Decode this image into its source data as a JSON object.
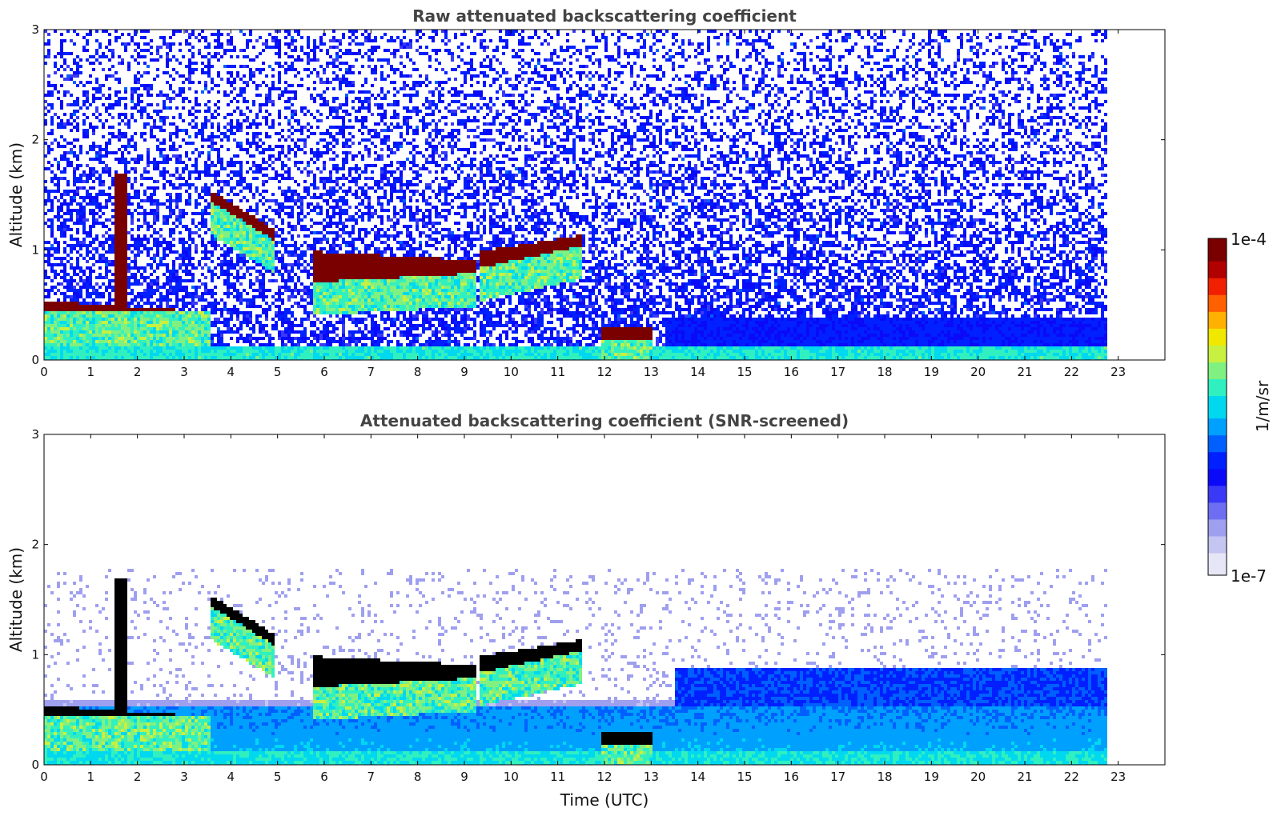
{
  "chart_data": [
    {
      "type": "heatmap",
      "title": "Raw attenuated backscattering coefficient",
      "xlabel": "",
      "ylabel": "Altitude (km)",
      "xlim": [
        0,
        24
      ],
      "ylim": [
        0,
        3
      ],
      "x_ticks": [
        "0",
        "1",
        "2",
        "3",
        "4",
        "5",
        "6",
        "7",
        "8",
        "9",
        "10",
        "11",
        "12",
        "13",
        "14",
        "15",
        "16",
        "17",
        "18",
        "19",
        "20",
        "21",
        "22",
        "23"
      ],
      "y_ticks": [
        "0",
        "1",
        "2",
        "3"
      ],
      "data_extent_hours": [
        0,
        22.7
      ],
      "colorscale": "jet",
      "layers": [
        {
          "x": [
            0,
            3.55
          ],
          "base_km": [
            0.45,
            0.45
          ],
          "note": "cloud layer",
          "top_km": [
            0.55,
            0.45
          ]
        },
        {
          "x": [
            1.5,
            1.75
          ],
          "base_km": [
            0.45
          ],
          "top_km": [
            1.7
          ]
        },
        {
          "x": [
            3.55,
            4.9
          ],
          "base_km": [
            1.45,
            1.1
          ],
          "top_km": [
            1.55,
            1.2
          ]
        },
        {
          "x": [
            5.7,
            9.2
          ],
          "base_km": [
            0.72,
            0.8
          ],
          "top_km": [
            1.0,
            0.92
          ]
        },
        {
          "x": [
            9.3,
            11.5
          ],
          "base_km": [
            0.85,
            1.05
          ],
          "top_km": [
            1.0,
            1.15
          ]
        },
        {
          "x": [
            11.9,
            13.0
          ],
          "base_km": [
            0.2
          ],
          "top_km": [
            0.32
          ]
        }
      ]
    },
    {
      "type": "heatmap",
      "title": "Attenuated backscattering coefficient (SNR-screened)",
      "xlabel": "Time (UTC)",
      "ylabel": "Altitude (km)",
      "xlim": [
        0,
        24
      ],
      "ylim": [
        0,
        3
      ],
      "x_ticks": [
        "0",
        "1",
        "2",
        "3",
        "4",
        "5",
        "6",
        "7",
        "8",
        "9",
        "10",
        "11",
        "12",
        "13",
        "14",
        "15",
        "16",
        "17",
        "18",
        "19",
        "20",
        "21",
        "22",
        "23"
      ],
      "y_ticks": [
        "0",
        "1",
        "2",
        "3"
      ],
      "data_extent_hours": [
        0,
        22.7
      ],
      "colorscale": "jet",
      "saturated_color": "#000000"
    }
  ],
  "colorbar": {
    "label": "1/m/sr",
    "max_label": "1e-4",
    "min_label": "1e-7",
    "colors": [
      "#e6e6f7",
      "#c5c5f2",
      "#9f9ff0",
      "#6e6ef2",
      "#3a3af6",
      "#0a0af9",
      "#0020ff",
      "#0060ff",
      "#00a0ff",
      "#00d8f0",
      "#30f0c0",
      "#80f080",
      "#c8f040",
      "#f0e800",
      "#ffb000",
      "#ff6000",
      "#f02000",
      "#b00000",
      "#7a0000"
    ]
  }
}
